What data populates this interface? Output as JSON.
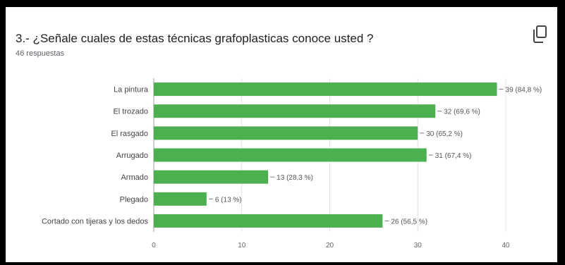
{
  "question": {
    "title": "3.- ¿Señale cuales de estas técnicas grafoplasticas conoce usted ?",
    "responses": "46 respuestas",
    "copy_icon": "copy-icon"
  },
  "chart_data": {
    "type": "bar",
    "orientation": "horizontal",
    "title": "3.- ¿Señale cuales de estas técnicas grafoplasticas conoce usted ?",
    "categories": [
      "La pintura",
      "El trozado",
      "El rasgado",
      "Arrugado",
      "Armado",
      "Plegado",
      "Cortado con tijeras y los dedos"
    ],
    "values": [
      39,
      32,
      30,
      31,
      13,
      6,
      26
    ],
    "value_labels": [
      "39 (84,8 %)",
      "32 (69,6 %)",
      "30 (65,2 %)",
      "31 (67,4 %)",
      "13 (28,3 %)",
      "6 (13 %)",
      "26 (56,5 %)"
    ],
    "xlim": [
      0,
      40
    ],
    "xticks": [
      "0",
      "10",
      "20",
      "30",
      "40"
    ],
    "grid": true,
    "bar_color": "#4caf50"
  }
}
